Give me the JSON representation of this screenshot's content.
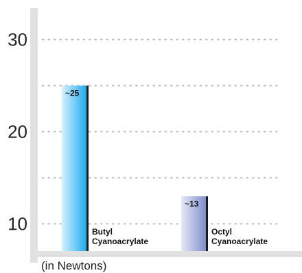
{
  "chart_data": {
    "type": "bar",
    "title": "",
    "xlabel": "",
    "ylabel": "",
    "unit_label": "(in Newtons)",
    "categories": [
      "Butyl\nCyanoacrylate",
      "Octyl\nCyanoacrylate"
    ],
    "values": [
      25,
      13
    ],
    "value_labels": [
      "~25",
      "~13"
    ],
    "yticks": [
      10,
      20,
      30
    ],
    "ylim": [
      7,
      33
    ],
    "grid": true,
    "legend": "none",
    "colors": {
      "bar1_light": "#d6f1ff",
      "bar1_dark": "#1aa9ec",
      "bar2_light": "#e6e9f7",
      "bar2_dark": "#7d8ccc",
      "axis": "#e1e1e1",
      "grid": "#b8b8b8"
    }
  }
}
